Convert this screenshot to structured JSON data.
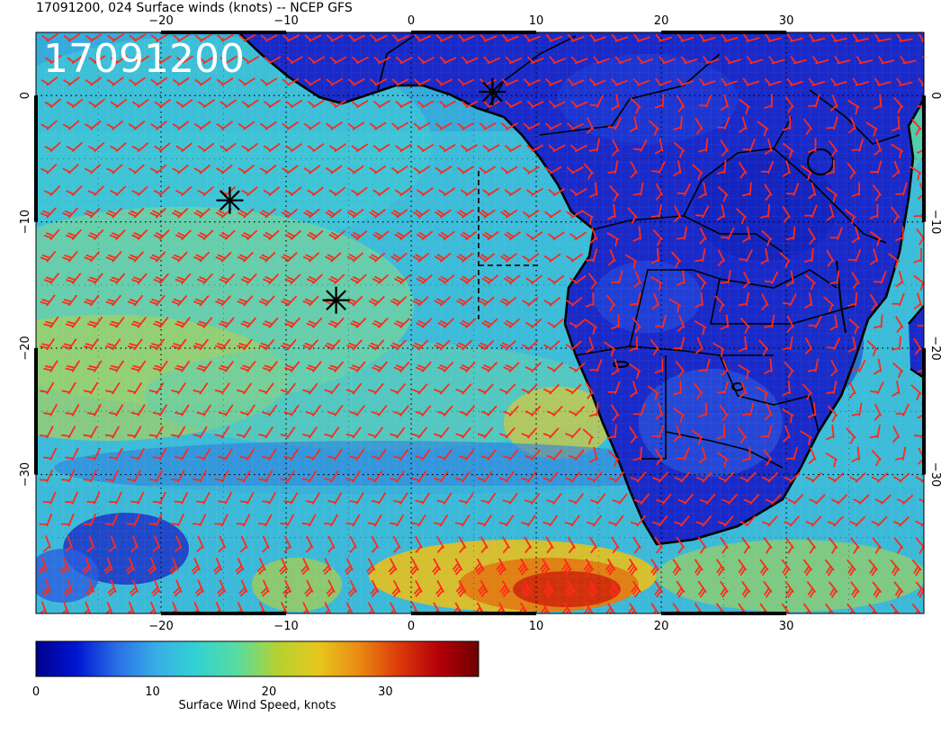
{
  "header": {
    "title": "17091200, 024 Surface winds (knots) -- NCEP GFS",
    "date_label": "17091200"
  },
  "map": {
    "lon_range": [
      -30,
      41
    ],
    "lat_range": [
      5,
      -41
    ],
    "lon_ticks": [
      {
        "value": -20,
        "label": "−20"
      },
      {
        "value": -10,
        "label": "−10"
      },
      {
        "value": 0,
        "label": "0"
      },
      {
        "value": 10,
        "label": "10"
      },
      {
        "value": 20,
        "label": "20"
      },
      {
        "value": 30,
        "label": "30"
      }
    ],
    "lat_ticks": [
      {
        "value": 0,
        "label": "0"
      },
      {
        "value": -10,
        "label": "−10"
      },
      {
        "value": -20,
        "label": "−20"
      },
      {
        "value": -30,
        "label": "−30"
      }
    ],
    "gridlines": "dotted",
    "barb_color": "#ff2a1a",
    "markers": [
      {
        "type": "asterisk",
        "lon": 6.5,
        "lat": 0.3
      },
      {
        "type": "asterisk",
        "lon": -14.5,
        "lat": -8.3
      },
      {
        "type": "asterisk",
        "lon": -6.0,
        "lat": -16.2
      }
    ]
  },
  "colorbar": {
    "label": "Surface Wind Speed, knots",
    "min": 0,
    "max": 38,
    "ticks": [
      {
        "value": 0,
        "label": "0"
      },
      {
        "value": 10,
        "label": "10"
      },
      {
        "value": 20,
        "label": "20"
      },
      {
        "value": 30,
        "label": "30"
      }
    ],
    "colors": [
      "#00008c",
      "#0014d2",
      "#2a6ee6",
      "#38aee6",
      "#32d2d2",
      "#58dca0",
      "#b4d232",
      "#e6c81e",
      "#eb8c14",
      "#dc3c0a",
      "#b4000a",
      "#6e0000"
    ]
  }
}
